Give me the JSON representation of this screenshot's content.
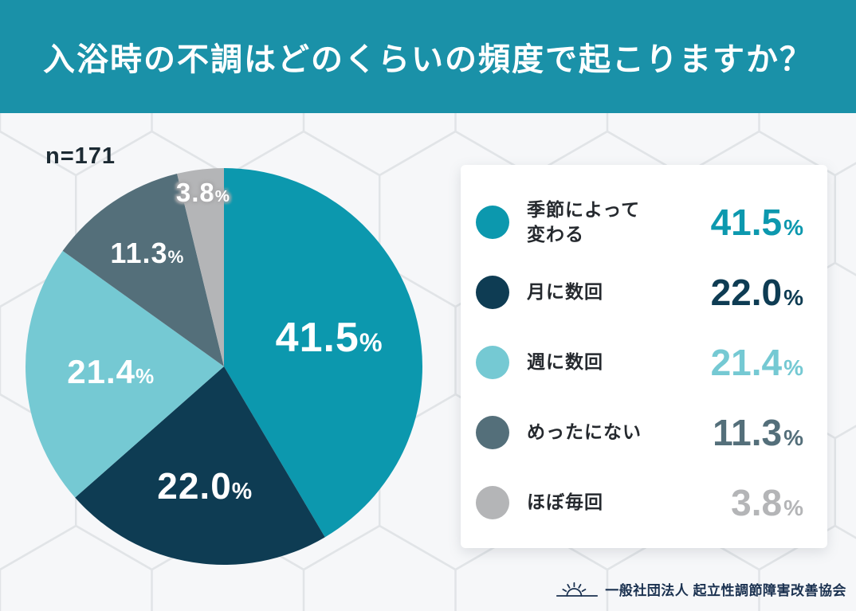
{
  "header": {
    "title": "入浴時の不調はどのくらいの頻度で起こりますか？",
    "bg_color": "#1A91A8",
    "text_color": "#FFFFFF"
  },
  "sample_label": "n=171",
  "chart_data": {
    "type": "pie",
    "title": "入浴時の不調はどのくらいの頻度で起こりますか？",
    "n": 171,
    "categories": [
      "季節によって変わる",
      "月に数回",
      "週に数回",
      "めったにない",
      "ほぼ毎回"
    ],
    "values": [
      41.5,
      22.0,
      21.4,
      11.3,
      3.8
    ],
    "values_display": [
      "41.5",
      "22.0",
      "21.4",
      "11.3",
      "3.8"
    ],
    "unit": "%",
    "colors": [
      "#0C98AE",
      "#0E3C53",
      "#75C9D3",
      "#546F7A",
      "#B4B5B7"
    ],
    "start_angle_deg": 0,
    "direction": "clockwise",
    "legend_position": "right",
    "grid": false
  },
  "legend": {
    "labels_display": [
      "季節によって\n変わる",
      "月に数回",
      "週に数回",
      "めったにない",
      "ほぼ毎回"
    ]
  },
  "footer": {
    "org": "一般社団法人 起立性調節障害改善協会"
  }
}
